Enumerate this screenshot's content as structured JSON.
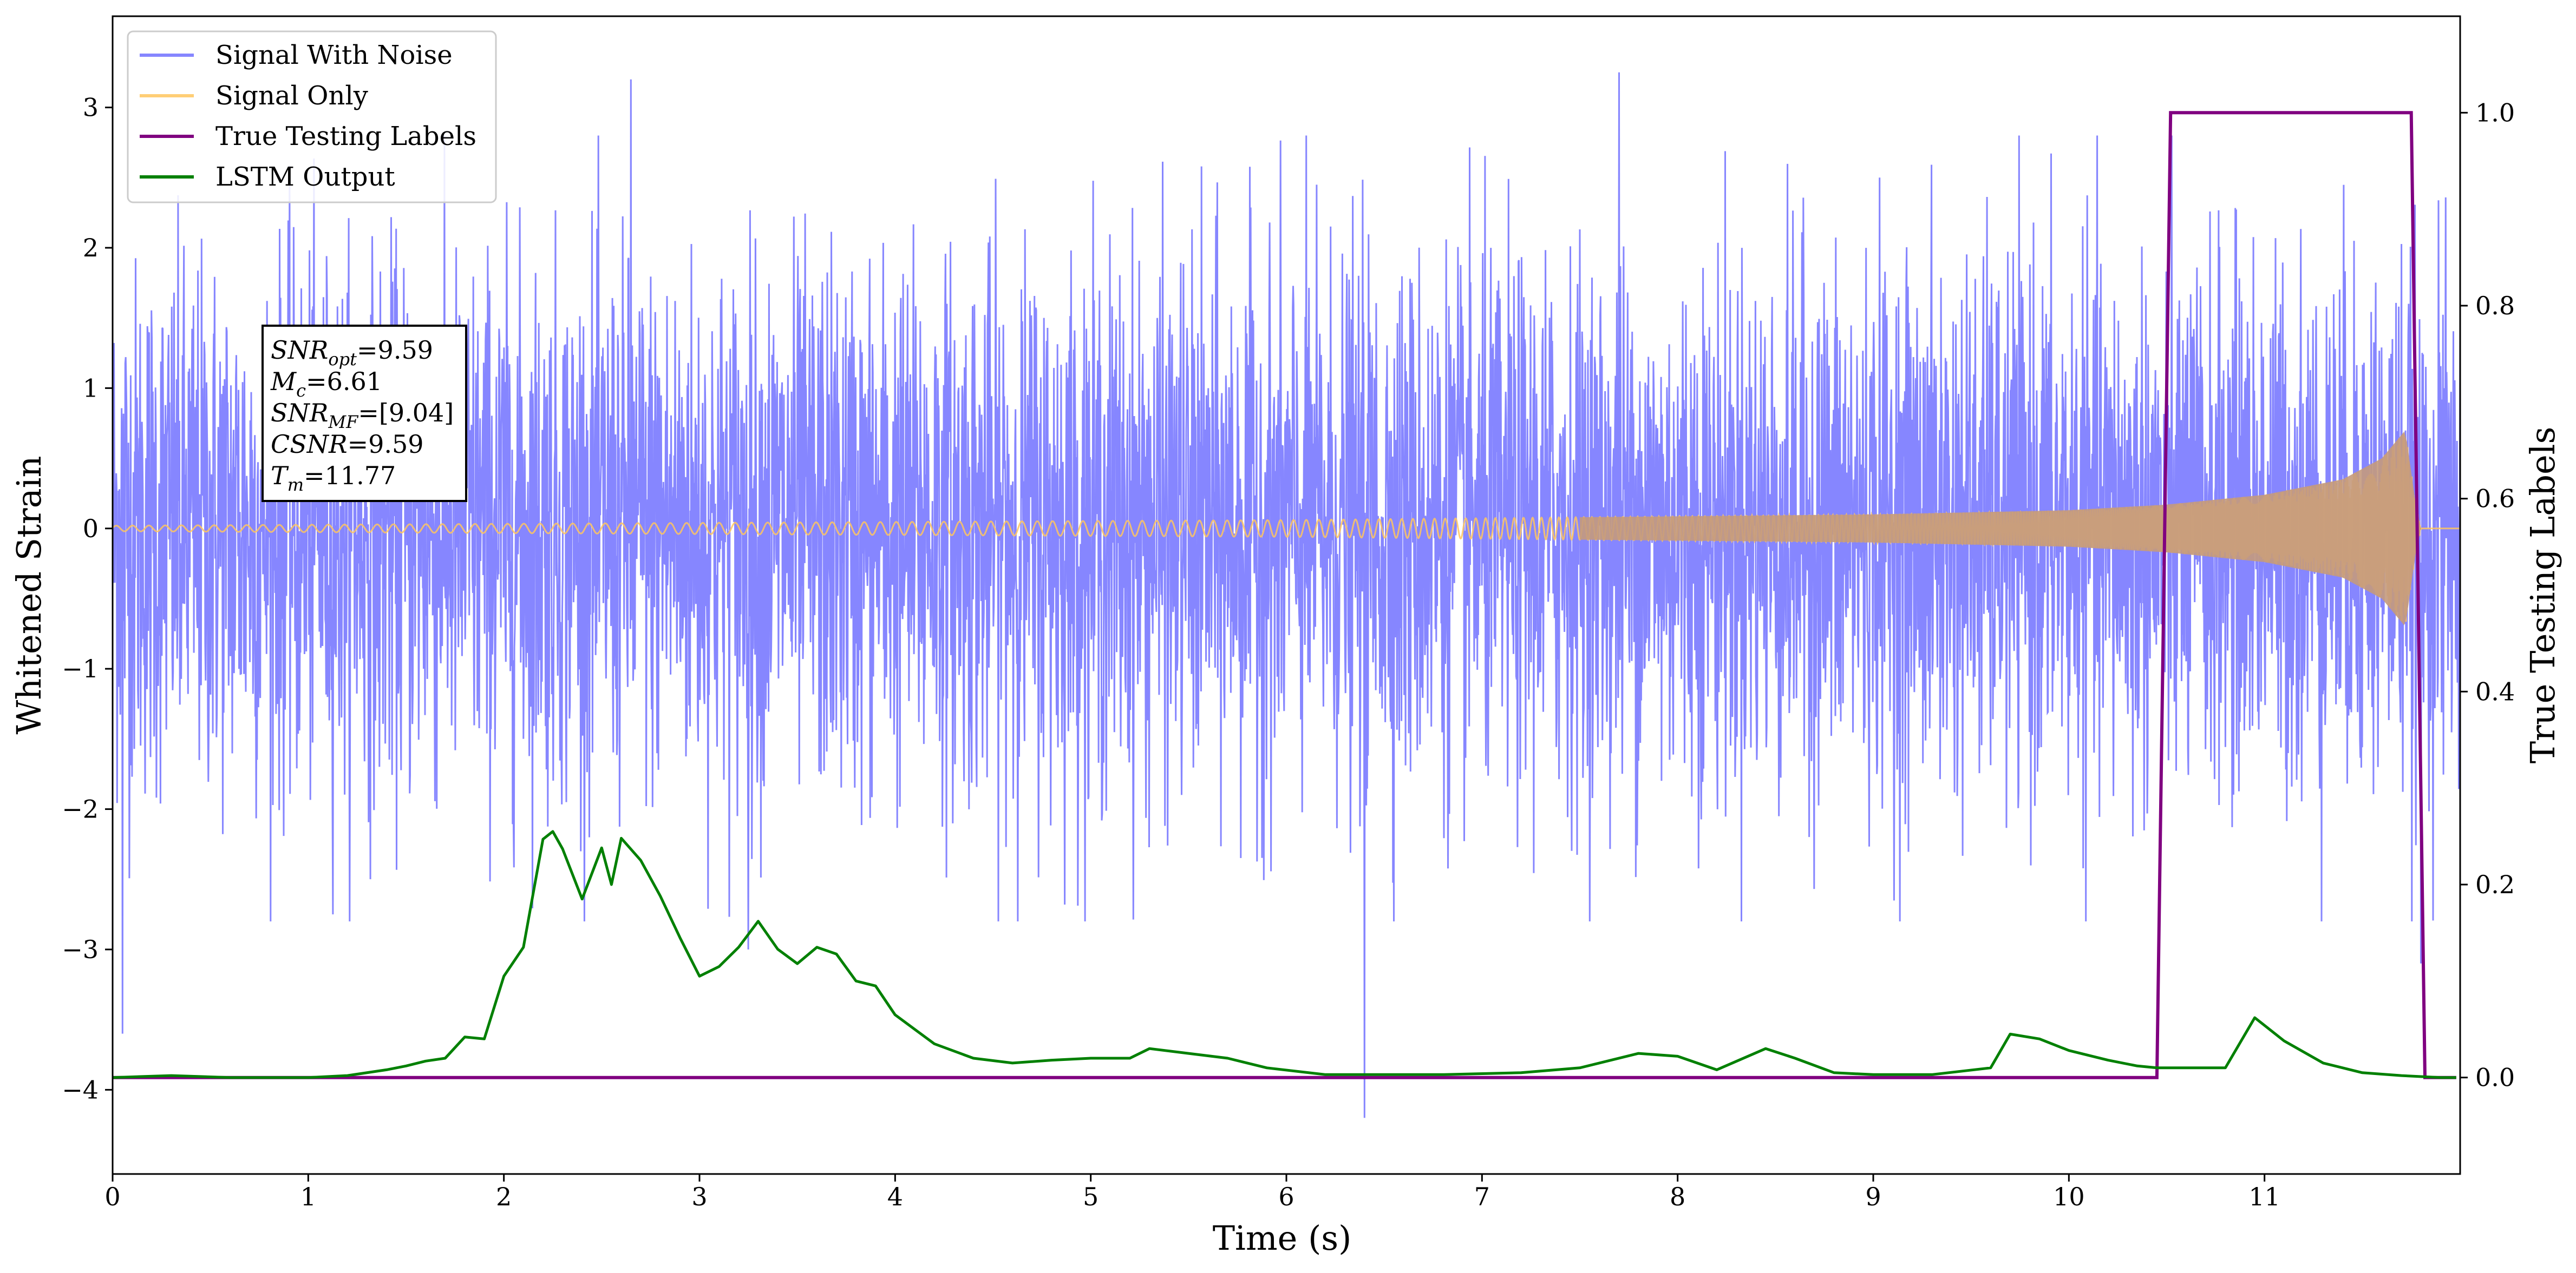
{
  "chart_data": {
    "type": "line",
    "xlabel": "Time (s)",
    "ylabel": "Whitened Strain",
    "y2label": "True Testing Labels",
    "xlim": [
      0,
      12
    ],
    "ylim": [
      -4.6,
      3.65
    ],
    "y2lim": [
      -0.1,
      1.1
    ],
    "xticks": [
      "0",
      "1",
      "2",
      "3",
      "4",
      "5",
      "6",
      "7",
      "8",
      "9",
      "10",
      "11"
    ],
    "yticks": [
      "3",
      "2",
      "1",
      "0",
      "−1",
      "−2",
      "−3",
      "−4"
    ],
    "y2ticks": [
      "0.0",
      "0.2",
      "0.4",
      "0.6",
      "0.8",
      "1.0"
    ],
    "grid": false,
    "legend_position": "top-left",
    "series": [
      {
        "name": "Signal With Noise",
        "color": "#7f7fff",
        "axis": "left",
        "description": "Gaussian-like whitened noise, amplitude roughly ±1.5, peaks near 3.2 and −4.2",
        "extremes": [
          [
            0.05,
            -3.6
          ],
          [
            2.65,
            3.2
          ],
          [
            3.25,
            -3.0
          ],
          [
            6.4,
            -4.2
          ],
          [
            7.7,
            3.25
          ],
          [
            11.8,
            -3.1
          ]
        ]
      },
      {
        "name": "Signal Only",
        "color": "#ffc55e",
        "axis": "left",
        "description": "chirp oscillation centered on 0, amplitude grows from ~0.02 to ~0.7 near 11.75 s then ends",
        "envelope": [
          [
            0,
            0.02
          ],
          [
            3,
            0.04
          ],
          [
            6,
            0.06
          ],
          [
            9,
            0.1
          ],
          [
            10,
            0.13
          ],
          [
            10.5,
            0.17
          ],
          [
            11,
            0.24
          ],
          [
            11.4,
            0.35
          ],
          [
            11.6,
            0.5
          ],
          [
            11.72,
            0.7
          ],
          [
            11.77,
            0.2
          ],
          [
            11.8,
            0
          ]
        ]
      },
      {
        "name": "True Testing Labels",
        "color": "#800080",
        "axis": "right",
        "x": [
          0,
          10.45,
          10.52,
          11.75,
          11.82,
          11.98
        ],
        "y": [
          0,
          0,
          1,
          1,
          0,
          0
        ]
      },
      {
        "name": "LSTM Output",
        "color": "#008000",
        "axis": "right",
        "x": [
          0,
          0.3,
          0.6,
          1,
          1.2,
          1.4,
          1.5,
          1.6,
          1.7,
          1.8,
          1.9,
          2.0,
          2.1,
          2.2,
          2.25,
          2.3,
          2.4,
          2.5,
          2.55,
          2.6,
          2.7,
          2.8,
          2.9,
          3.0,
          3.1,
          3.2,
          3.3,
          3.4,
          3.5,
          3.6,
          3.7,
          3.8,
          3.9,
          4.0,
          4.2,
          4.4,
          4.6,
          4.8,
          5.0,
          5.2,
          5.3,
          5.5,
          5.7,
          5.9,
          6.2,
          6.5,
          6.8,
          7.2,
          7.5,
          7.8,
          8.0,
          8.2,
          8.45,
          8.6,
          8.8,
          9.0,
          9.3,
          9.6,
          9.7,
          9.85,
          10.0,
          10.2,
          10.35,
          10.45,
          10.6,
          10.8,
          10.95,
          11.1,
          11.3,
          11.5,
          11.7,
          11.9,
          11.98
        ],
        "y": [
          0,
          0.002,
          0,
          0,
          0.002,
          0.008,
          0.012,
          0.017,
          0.02,
          0.042,
          0.04,
          0.105,
          0.135,
          0.247,
          0.255,
          0.237,
          0.185,
          0.238,
          0.2,
          0.248,
          0.225,
          0.188,
          0.145,
          0.105,
          0.115,
          0.135,
          0.162,
          0.133,
          0.118,
          0.135,
          0.128,
          0.1,
          0.095,
          0.065,
          0.035,
          0.02,
          0.015,
          0.018,
          0.02,
          0.02,
          0.03,
          0.025,
          0.02,
          0.01,
          0.003,
          0.003,
          0.003,
          0.005,
          0.01,
          0.025,
          0.022,
          0.008,
          0.03,
          0.02,
          0.005,
          0.003,
          0.003,
          0.01,
          0.045,
          0.04,
          0.028,
          0.018,
          0.012,
          0.01,
          0.01,
          0.01,
          0.062,
          0.038,
          0.015,
          0.005,
          0.002,
          0,
          0
        ]
      }
    ],
    "annotation": [
      {
        "base": "SNR",
        "sub": "opt",
        "value": "=9.59"
      },
      {
        "base": "M",
        "sub": "c",
        "value": "=6.61"
      },
      {
        "base": "SNR",
        "sub": "MF",
        "value": "=[9.04]"
      },
      {
        "base": "CSNR",
        "sub": "",
        "value": "=9.59"
      },
      {
        "base": "T",
        "sub": "m",
        "value": "=11.77"
      }
    ]
  }
}
